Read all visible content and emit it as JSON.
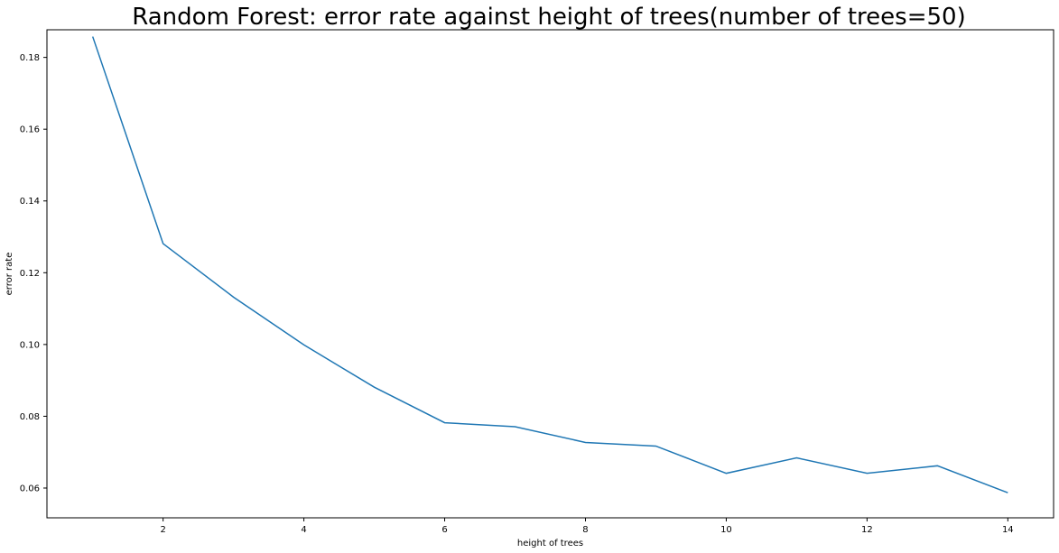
{
  "chart_data": {
    "type": "line",
    "title": "Random Forest: error rate against height of trees(number of trees=50)",
    "xlabel": "height of trees",
    "ylabel": "error rate",
    "xlim": [
      0.35,
      14.65
    ],
    "ylim": [
      0.0517,
      0.1877
    ],
    "xticks": [
      2,
      4,
      6,
      8,
      10,
      12,
      14
    ],
    "yticks": [
      0.06,
      0.08,
      0.1,
      0.12,
      0.14,
      0.16,
      0.18
    ],
    "ytick_labels": [
      "0.06",
      "0.08",
      "0.10",
      "0.12",
      "0.14",
      "0.16",
      "0.18"
    ],
    "grid": false,
    "series": [
      {
        "color": "#1f77b4",
        "x": [
          1,
          2,
          3,
          4,
          5,
          6,
          7,
          8,
          9,
          10,
          11,
          12,
          13,
          14
        ],
        "y": [
          0.1858,
          0.1281,
          0.1132,
          0.0999,
          0.0881,
          0.0782,
          0.0771,
          0.0727,
          0.0717,
          0.0641,
          0.0684,
          0.0641,
          0.0662,
          0.0587
        ]
      }
    ]
  }
}
